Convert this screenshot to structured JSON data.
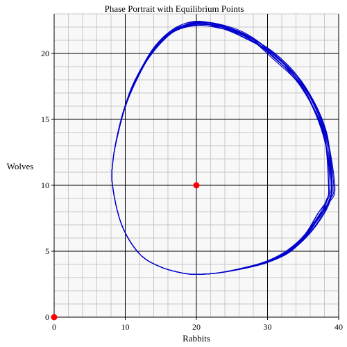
{
  "chart_data": {
    "type": "line",
    "title": "Phase Portrait with Equilibrium Points",
    "xlabel": "Rabbits",
    "ylabel": "Wolves",
    "xlim": [
      0,
      40
    ],
    "ylim": [
      0,
      23
    ],
    "xticks": [
      0,
      10,
      20,
      30,
      40
    ],
    "yticks": [
      0,
      5,
      10,
      15,
      20
    ],
    "grid": true,
    "minor_grid": true,
    "colors": {
      "trajectory": "#0000cc",
      "equilibrium": "#ff0000",
      "major_grid": "#000000",
      "minor_grid": "#c8c8c8",
      "background": "#f8f8f8"
    },
    "series": [
      {
        "kind": "trajectory",
        "x": [
          8.2,
          9.5,
          12.0,
          15.0,
          18.0,
          20.0,
          23.0,
          27.0,
          30.0,
          33.0,
          35.5,
          37.5,
          38.5,
          39.0,
          38.0,
          35.0,
          31.0,
          27.0,
          23.0,
          20.0,
          17.0,
          14.0,
          11.5,
          10.0,
          9.0,
          8.3,
          8.2
        ],
        "y": [
          10.0,
          7.0,
          4.8,
          3.8,
          3.35,
          3.25,
          3.35,
          3.75,
          4.2,
          5.0,
          6.3,
          7.8,
          8.8,
          10.0,
          14.0,
          17.5,
          19.8,
          21.3,
          22.1,
          22.3,
          21.8,
          20.3,
          18.0,
          16.0,
          14.0,
          12.0,
          10.0
        ]
      }
    ],
    "equilibrium_points": [
      {
        "x": 0,
        "y": 0
      },
      {
        "x": 20,
        "y": 10
      }
    ]
  }
}
